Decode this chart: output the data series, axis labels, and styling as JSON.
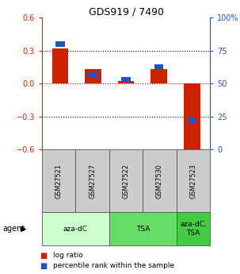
{
  "title": "GDS919 / 7490",
  "samples": [
    "GSM27521",
    "GSM27527",
    "GSM27522",
    "GSM27530",
    "GSM27523"
  ],
  "log_ratio": [
    0.32,
    0.13,
    0.02,
    0.13,
    -0.62
  ],
  "percentile_rank": [
    80,
    57,
    53,
    63,
    22
  ],
  "ylim_left": [
    -0.6,
    0.6
  ],
  "ylim_right": [
    0,
    100
  ],
  "yticks_left": [
    -0.6,
    -0.3,
    0.0,
    0.3,
    0.6
  ],
  "yticks_right": [
    0,
    25,
    50,
    75,
    100
  ],
  "bar_color_red": "#cc2200",
  "bar_color_blue": "#2255bb",
  "bar_width": 0.5,
  "zero_line_color": "#cc0000",
  "grid_color": "#000000",
  "agent_groups": [
    {
      "label": "aza-dC",
      "cols": [
        0,
        1
      ],
      "color": "#ccffcc"
    },
    {
      "label": "TSA",
      "cols": [
        2,
        3
      ],
      "color": "#66dd66"
    },
    {
      "label": "aza-dC,\nTSA",
      "cols": [
        4
      ],
      "color": "#44cc44"
    }
  ],
  "sample_box_color": "#cccccc",
  "legend_items": [
    {
      "color": "#cc2200",
      "label": "log ratio"
    },
    {
      "color": "#2255bb",
      "label": "percentile rank within the sample"
    }
  ]
}
